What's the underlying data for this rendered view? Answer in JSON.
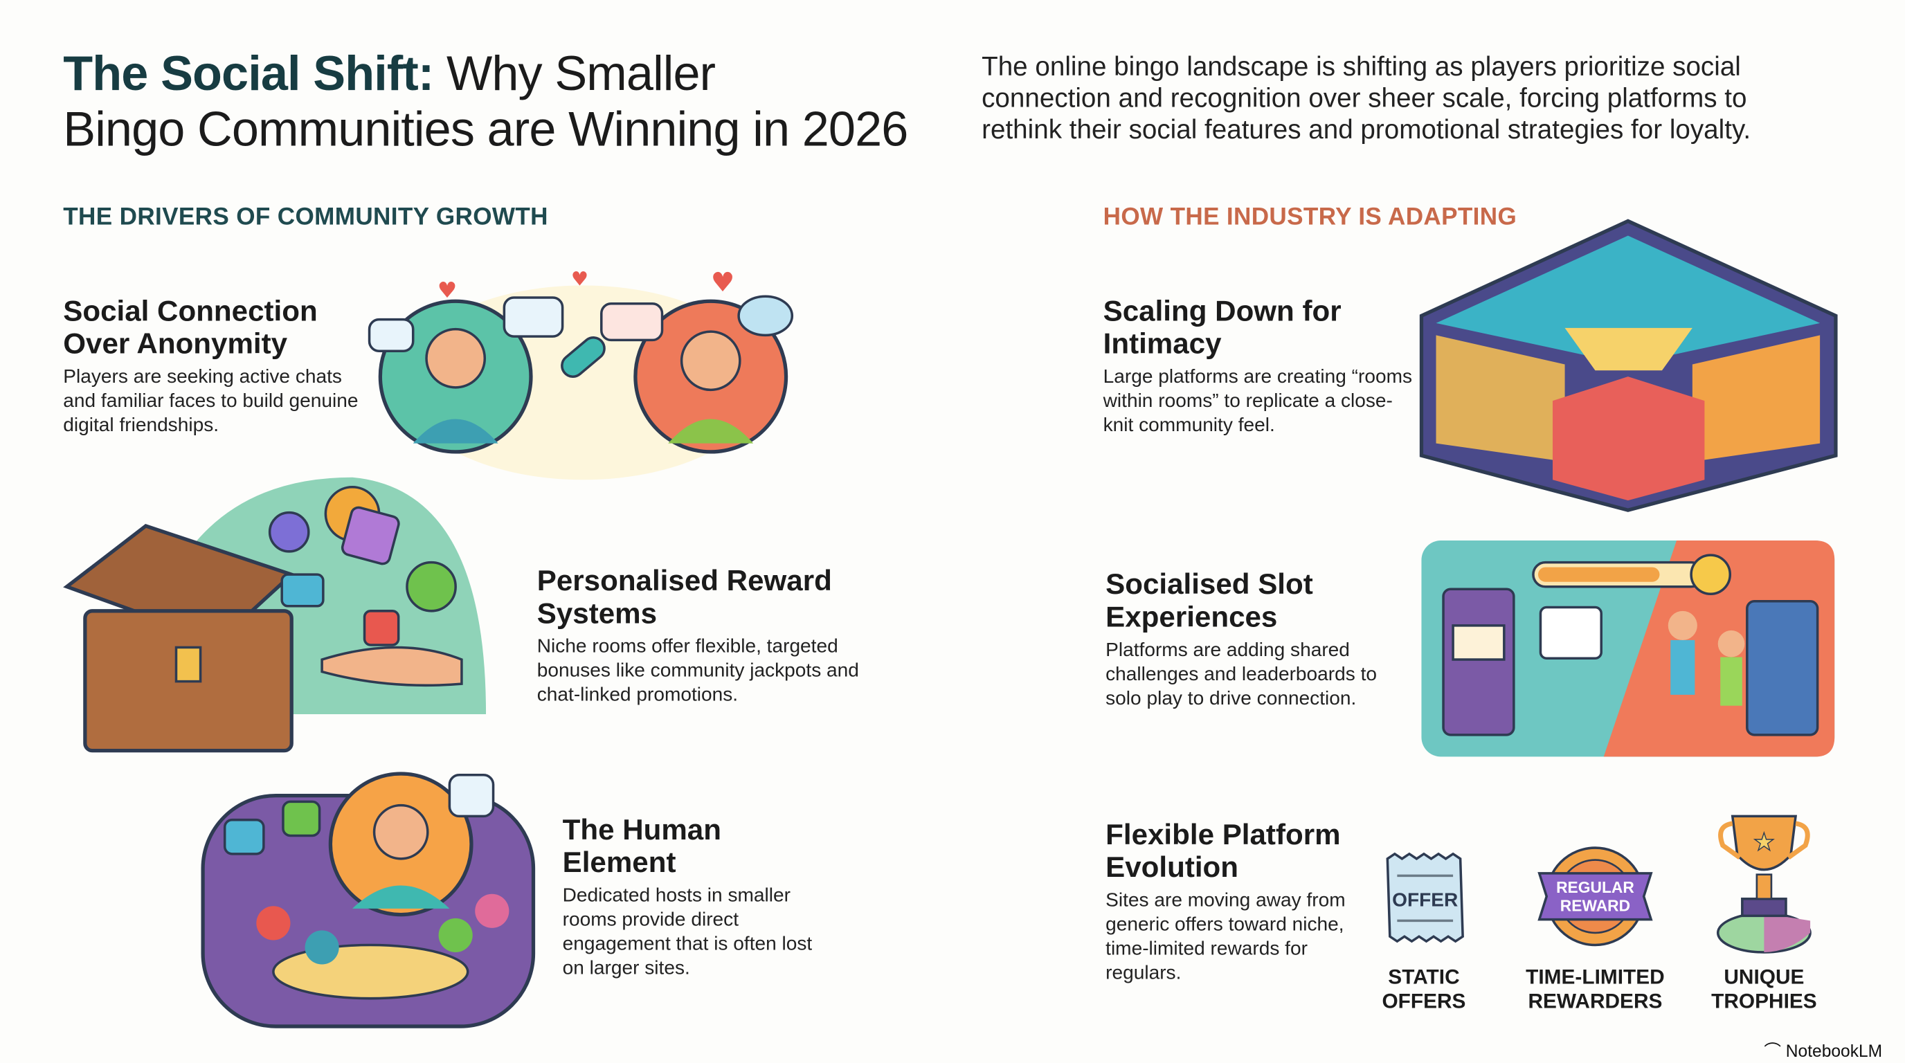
{
  "header": {
    "title_bold": "The Social Shift:",
    "title_rest_line1": " Why Smaller",
    "title_line2": "Bingo Communities are Winning in 2026",
    "intro": "The online bingo landscape is shifting as players prioritize social connection and recognition over sheer scale, forcing platforms to rethink their social features and promotional strategies for loyalty."
  },
  "left_section": {
    "heading": "THE DRIVERS OF COMMUNITY GROWTH",
    "items": [
      {
        "title": "Social Connection Over Anonymity",
        "description": "Players are seeking active chats and familiar faces to build genuine digital friendships.",
        "icon": "two-friends-chat-link-icon"
      },
      {
        "title": "Personalised Reward Systems",
        "description": "Niche rooms offer flexible, targeted bonuses like community jackpots and chat-linked promotions.",
        "icon": "treasure-chest-icon"
      },
      {
        "title": "The Human Element",
        "description": "Dedicated hosts in smaller rooms provide direct engagement that is often lost on larger sites.",
        "icon": "host-with-community-icon"
      }
    ]
  },
  "right_section": {
    "heading": "HOW THE INDUSTRY IS ADAPTING",
    "items": [
      {
        "title": "Scaling Down for Intimacy",
        "description": "Large platforms are creating “rooms within rooms” to replicate a close-knit community feel.",
        "icon": "hexagon-rooms-icon"
      },
      {
        "title": "Socialised Slot Experiences",
        "description": "Platforms are adding shared challenges and leaderboards to solo play to drive connection.",
        "icon": "slot-machine-celebration-icon"
      },
      {
        "title": "Flexible Platform Evolution",
        "description": "Sites are moving away from generic offers toward niche, time-limited rewards for regulars.",
        "icon": "evolution-icons"
      }
    ],
    "evolution": [
      {
        "label": "STATIC OFFERS",
        "icon_text": "OFFER",
        "icon": "ticket-icon"
      },
      {
        "label": "TIME-LIMITED REWARDERS",
        "icon_text": "REGULAR REWARD",
        "icon": "badge-icon"
      },
      {
        "label": "UNIQUE TROPHIES",
        "icon": "trophy-icon"
      }
    ]
  },
  "footer": {
    "brand": "NotebookLM"
  },
  "colors": {
    "title_teal": "#173c42",
    "left_heading": "#1f4a4f",
    "right_heading": "#c8694a"
  }
}
